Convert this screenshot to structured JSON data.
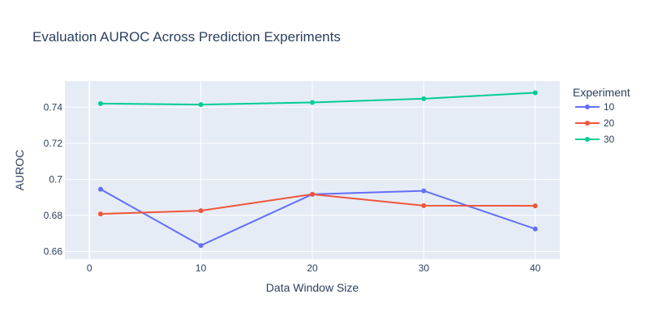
{
  "chart_data": {
    "type": "line",
    "title": "Evaluation AUROC Across Prediction Experiments",
    "xlabel": "Data Window Size",
    "ylabel": "AUROC",
    "xlim": [
      -2.2,
      42.2
    ],
    "ylim": [
      0.6557,
      0.7545
    ],
    "x_ticks": [
      0,
      10,
      20,
      30,
      40
    ],
    "x_tick_labels": [
      "0",
      "10",
      "20",
      "30",
      "40"
    ],
    "y_ticks": [
      0.66,
      0.68,
      0.7,
      0.72,
      0.74
    ],
    "y_tick_labels": [
      "0.66",
      "0.68",
      "0.7",
      "0.72",
      "0.74"
    ],
    "legend_title": "Experiment",
    "legend_position": "right",
    "grid": true,
    "x": [
      1,
      10,
      20,
      30,
      40
    ],
    "series": [
      {
        "name": "10",
        "color": "#636efa",
        "values": [
          0.6945,
          0.6633,
          0.6917,
          0.6936,
          0.6725
        ]
      },
      {
        "name": "20",
        "color": "#ef553b",
        "values": [
          0.6808,
          0.6826,
          0.6917,
          0.6854,
          0.6853
        ]
      },
      {
        "name": "30",
        "color": "#00cc96",
        "values": [
          0.742,
          0.7414,
          0.7426,
          0.7447,
          0.748
        ]
      }
    ]
  }
}
